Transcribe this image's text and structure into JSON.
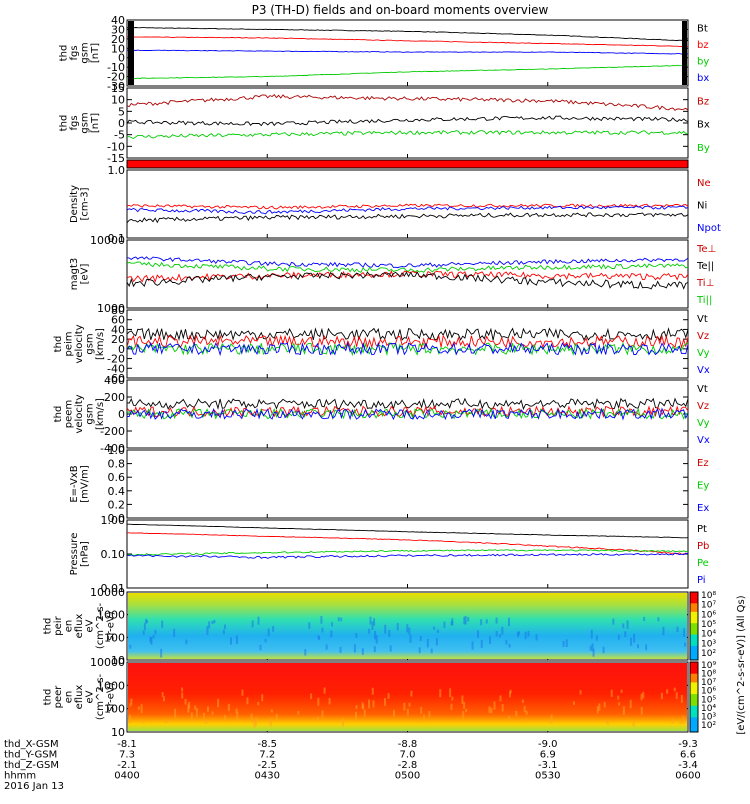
{
  "title": "P3 (TH-D) fields and on-board moments overview",
  "chart_data": [
    {
      "type": "line",
      "ylabel": [
        "thd",
        "fgs",
        "gsm",
        "[nT]"
      ],
      "ylim": [
        -30,
        40
      ],
      "yticks": [
        "40",
        "30",
        "20",
        "10",
        "0",
        "-10",
        "-20",
        "-30"
      ],
      "legend": [
        {
          "name": "Bt",
          "color": "#000000"
        },
        {
          "name": "bz",
          "color": "#ff0000"
        },
        {
          "name": "by",
          "color": "#00cc00"
        },
        {
          "name": "bx",
          "color": "#0000ff"
        }
      ],
      "series": [
        {
          "name": "Bt",
          "color": "#000000",
          "x": [
            "0400",
            "0430",
            "0500",
            "0530",
            "0600"
          ],
          "values": [
            32,
            30,
            28,
            24,
            18
          ]
        },
        {
          "name": "bz",
          "color": "#ff0000",
          "x": [
            "0400",
            "0430",
            "0500",
            "0530",
            "0600"
          ],
          "values": [
            22,
            21,
            18,
            15,
            12
          ]
        },
        {
          "name": "by",
          "color": "#0000ff",
          "x": [
            "0400",
            "0430",
            "0500",
            "0530",
            "0600"
          ],
          "values": [
            8,
            7,
            6,
            6,
            4
          ]
        },
        {
          "name": "bx",
          "color": "#00cc00",
          "x": [
            "0400",
            "0430",
            "0500",
            "0530",
            "0600"
          ],
          "values": [
            -22,
            -20,
            -15,
            -12,
            -8
          ]
        }
      ]
    },
    {
      "type": "line",
      "ylabel": [
        "thd",
        "fgs",
        "gsm",
        "[nT]"
      ],
      "ylim": [
        -18,
        15
      ],
      "yticks": [
        "15",
        "10",
        "5",
        "0",
        "-5",
        "-10",
        "-15"
      ],
      "legend": [
        {
          "name": "Bz",
          "color": "#cc0000"
        },
        {
          "name": "Bx",
          "color": "#000000"
        },
        {
          "name": "By",
          "color": "#00cc00"
        }
      ],
      "series": [
        {
          "name": "Bz",
          "color": "#aa0000",
          "x": [
            "0400",
            "0430",
            "0500",
            "0530",
            "0600"
          ],
          "values": [
            7,
            11,
            10,
            9,
            5
          ]
        },
        {
          "name": "Bx",
          "color": "#000000",
          "x": [
            "0400",
            "0430",
            "0500",
            "0530",
            "0600"
          ],
          "values": [
            -1,
            -2,
            0,
            1,
            0
          ]
        },
        {
          "name": "By",
          "color": "#00cc00",
          "x": [
            "0400",
            "0430",
            "0500",
            "0530",
            "0600"
          ],
          "values": [
            -8,
            -7,
            -6,
            -6,
            -6
          ]
        }
      ]
    },
    {
      "type": "line",
      "ylabel": [
        "Density",
        "[cm-3]"
      ],
      "scale": "log",
      "ylim": [
        0.1,
        1.0
      ],
      "yticks": [
        "1.0",
        "0.1"
      ],
      "legend": [
        {
          "name": "Ne",
          "color": "#cc0000"
        },
        {
          "name": "Ni",
          "color": "#000000"
        },
        {
          "name": "Npot",
          "color": "#0000ff"
        }
      ],
      "series": [
        {
          "name": "Ne",
          "color": "#ff0000",
          "x": [
            "0400",
            "0430",
            "0500",
            "0530",
            "0600"
          ],
          "values": [
            0.3,
            0.28,
            0.3,
            0.3,
            0.3
          ]
        },
        {
          "name": "Ni",
          "color": "#0000ff",
          "x": [
            "0400",
            "0430",
            "0500",
            "0530",
            "0600"
          ],
          "values": [
            0.26,
            0.24,
            0.27,
            0.28,
            0.28
          ]
        },
        {
          "name": "Npot",
          "color": "#000000",
          "x": [
            "0400",
            "0430",
            "0500",
            "0530",
            "0600"
          ],
          "values": [
            0.18,
            0.2,
            0.21,
            0.22,
            0.22
          ]
        }
      ]
    },
    {
      "type": "line",
      "ylabel": [
        "magt3",
        "[eV]"
      ],
      "scale": "log",
      "ylim": [
        1000,
        10000
      ],
      "yticks": [
        "10000",
        "1000"
      ],
      "legend": [
        {
          "name": "Te⊥",
          "color": "#cc0000"
        },
        {
          "name": "Te||",
          "color": "#000000"
        },
        {
          "name": "Ti⊥",
          "color": "#cc0000"
        },
        {
          "name": "Ti||",
          "color": "#00cc00"
        }
      ],
      "series": [
        {
          "name": "Ti||",
          "color": "#0000ff",
          "x": [
            "0400",
            "0430",
            "0500",
            "0530",
            "0600"
          ],
          "values": [
            5500,
            4500,
            4200,
            4800,
            5200
          ]
        },
        {
          "name": "Ti⊥",
          "color": "#00cc00",
          "x": [
            "0400",
            "0430",
            "0500",
            "0530",
            "0600"
          ],
          "values": [
            4500,
            3800,
            3600,
            4000,
            4200
          ]
        },
        {
          "name": "Te⊥",
          "color": "#ff0000",
          "x": [
            "0400",
            "0430",
            "0500",
            "0530",
            "0600"
          ],
          "values": [
            2700,
            3000,
            3200,
            3000,
            2900
          ]
        },
        {
          "name": "Te||",
          "color": "#000000",
          "x": [
            "0400",
            "0430",
            "0500",
            "0530",
            "0600"
          ],
          "values": [
            2300,
            2900,
            3100,
            2400,
            2100
          ]
        }
      ]
    },
    {
      "type": "line",
      "ylabel": [
        "thd",
        "peim",
        "velocity",
        "gsm",
        "[km/s]"
      ],
      "ylim": [
        -60,
        80
      ],
      "yticks": [
        "80",
        "60",
        "40",
        "20",
        "0",
        "-20",
        "-40",
        "-60"
      ],
      "legend": [
        {
          "name": "Vt",
          "color": "#000000"
        },
        {
          "name": "Vz",
          "color": "#cc0000"
        },
        {
          "name": "Vy",
          "color": "#00cc00"
        },
        {
          "name": "Vx",
          "color": "#0000ff"
        }
      ],
      "series": [
        {
          "name": "Vt",
          "color": "#000000",
          "x": [
            "0400",
            "0430",
            "0500",
            "0530",
            "0600"
          ],
          "values": [
            30,
            30,
            30,
            30,
            30
          ]
        },
        {
          "name": "Vz",
          "color": "#ff0000",
          "x": [
            "0400",
            "0430",
            "0500",
            "0530",
            "0600"
          ],
          "values": [
            15,
            15,
            15,
            15,
            15
          ]
        },
        {
          "name": "Vy",
          "color": "#00cc00",
          "x": [
            "0400",
            "0430",
            "0500",
            "0530",
            "0600"
          ],
          "values": [
            0,
            0,
            0,
            0,
            0
          ]
        },
        {
          "name": "Vx",
          "color": "#0000ff",
          "x": [
            "0400",
            "0430",
            "0500",
            "0530",
            "0600"
          ],
          "values": [
            0,
            0,
            0,
            0,
            0
          ]
        }
      ]
    },
    {
      "type": "line",
      "ylabel": [
        "thd",
        "peem",
        "velocity",
        "gsm",
        "[km/s]"
      ],
      "ylim": [
        -400,
        400
      ],
      "yticks": [
        "400",
        "200",
        "0",
        "-200",
        "-400"
      ],
      "legend": [
        {
          "name": "Vt",
          "color": "#000000"
        },
        {
          "name": "Vz",
          "color": "#cc0000"
        },
        {
          "name": "Vy",
          "color": "#00cc00"
        },
        {
          "name": "Vx",
          "color": "#0000ff"
        }
      ],
      "series": [
        {
          "name": "Vt",
          "color": "#000000",
          "x": [
            "0400",
            "0430",
            "0500",
            "0530",
            "0600"
          ],
          "values": [
            120,
            120,
            120,
            120,
            120
          ]
        },
        {
          "name": "Vz",
          "color": "#ff0000",
          "x": [
            "0400",
            "0430",
            "0500",
            "0530",
            "0600"
          ],
          "values": [
            30,
            30,
            30,
            30,
            30
          ]
        },
        {
          "name": "Vy",
          "color": "#00cc00",
          "x": [
            "0400",
            "0430",
            "0500",
            "0530",
            "0600"
          ],
          "values": [
            0,
            0,
            0,
            0,
            0
          ]
        },
        {
          "name": "Vx",
          "color": "#0000ff",
          "x": [
            "0400",
            "0430",
            "0500",
            "0530",
            "0600"
          ],
          "values": [
            0,
            0,
            0,
            0,
            0
          ]
        }
      ]
    },
    {
      "type": "line",
      "ylabel": [
        "E=-VxB",
        "[mV/m]"
      ],
      "ylim": [
        0.0,
        1.0
      ],
      "yticks": [
        "1.0",
        "0.8",
        "0.6",
        "0.4",
        "0.2",
        "0.0"
      ],
      "legend": [
        {
          "name": "Ez",
          "color": "#cc0000"
        },
        {
          "name": "Ey",
          "color": "#00cc00"
        },
        {
          "name": "Ex",
          "color": "#0000ff"
        }
      ],
      "series": []
    },
    {
      "type": "line",
      "ylabel": [
        "Pressure",
        "[nPa]"
      ],
      "scale": "log",
      "ylim": [
        0.01,
        1.0
      ],
      "yticks": [
        "1.00",
        "0.10",
        "0.01"
      ],
      "legend": [
        {
          "name": "Pt",
          "color": "#000000"
        },
        {
          "name": "Pb",
          "color": "#cc0000"
        },
        {
          "name": "Pe",
          "color": "#00cc00"
        },
        {
          "name": "Pi",
          "color": "#0000ff"
        }
      ],
      "series": [
        {
          "name": "Pt",
          "color": "#000000",
          "x": [
            "0400",
            "0430",
            "0500",
            "0530",
            "0600"
          ],
          "values": [
            0.75,
            0.58,
            0.45,
            0.36,
            0.3
          ]
        },
        {
          "name": "Pb",
          "color": "#ff0000",
          "x": [
            "0400",
            "0430",
            "0500",
            "0530",
            "0600"
          ],
          "values": [
            0.42,
            0.33,
            0.26,
            0.17,
            0.1
          ]
        },
        {
          "name": "Pe",
          "color": "#00cc00",
          "x": [
            "0400",
            "0430",
            "0500",
            "0530",
            "0600"
          ],
          "values": [
            0.095,
            0.11,
            0.125,
            0.13,
            0.12
          ]
        },
        {
          "name": "Pi",
          "color": "#0000ff",
          "x": [
            "0400",
            "0430",
            "0500",
            "0530",
            "0600"
          ],
          "values": [
            0.09,
            0.08,
            0.09,
            0.095,
            0.1
          ]
        }
      ]
    },
    {
      "type": "heatmap",
      "ylabel": [
        "thd",
        "peir",
        "en",
        "eflux",
        "eV",
        "(cm^2-s-",
        "sr-eV)"
      ],
      "scale": "log",
      "ylim": [
        10,
        10000
      ],
      "yticks": [
        "10000",
        "1000",
        "100",
        "10"
      ],
      "colorbar": {
        "ticks": [
          "10⁸",
          "10⁷",
          "10⁶",
          "10⁵",
          "10⁴",
          "10³",
          "10²"
        ]
      }
    },
    {
      "type": "heatmap",
      "ylabel": [
        "thd",
        "peer",
        "en",
        "eflux",
        "eV",
        "(cm^2-s-",
        "sr-eV)"
      ],
      "scale": "log",
      "ylim": [
        10,
        10000
      ],
      "yticks": [
        "10000",
        "1000",
        "100",
        "10"
      ],
      "colorbar": {
        "ticks": [
          "10⁹",
          "10⁸",
          "10⁷",
          "10⁶",
          "10⁵",
          "10⁴",
          "10³",
          "10²"
        ]
      }
    }
  ],
  "colorbar_label": "[eV/(cm^2-s-sr-eV)] (All Qs)",
  "x_axis": {
    "row_labels": [
      "thd_X-GSM",
      "thd_Y-GSM",
      "thd_Z-GSM",
      "hhmm",
      "2016 Jan 13"
    ],
    "columns": [
      {
        "values": [
          "-8.1",
          "7.3",
          "-2.1",
          "0400"
        ]
      },
      {
        "values": [
          "-8.5",
          "7.2",
          "-2.5",
          "0430"
        ]
      },
      {
        "values": [
          "-8.8",
          "7.0",
          "-2.8",
          "0500"
        ]
      },
      {
        "values": [
          "-9.0",
          "6.9",
          "-3.1",
          "0530"
        ]
      },
      {
        "values": [
          "-9.3",
          "6.6",
          "-3.4",
          "0600"
        ]
      }
    ]
  }
}
